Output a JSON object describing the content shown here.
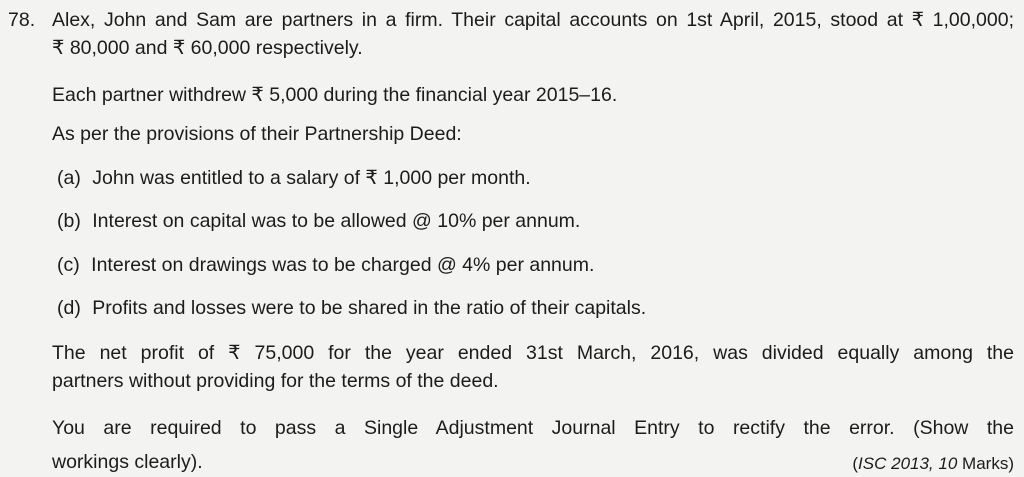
{
  "question": {
    "number": "78.",
    "intro_line1": "Alex, John and Sam are partners in a firm. Their capital accounts on 1st April, 2015, stood at ₹ 1,00,000;",
    "intro_line2": "₹ 80,000 and ₹ 60,000 respectively.",
    "drawings": "Each partner withdrew ₹ 5,000 during the financial year 2015–16.",
    "provisions_heading": "As per the provisions of their Partnership Deed:",
    "provisions": [
      {
        "label": "(a)",
        "text": "John was entitled to a salary of ₹ 1,000 per month."
      },
      {
        "label": "(b)",
        "text": "Interest on capital was to be allowed @ 10% per annum."
      },
      {
        "label": "(c)",
        "text": "Interest on drawings was to be charged @ 4% per annum."
      },
      {
        "label": "(d)",
        "text": "Profits and losses were to be shared in the ratio of their capitals."
      }
    ],
    "profit_line1": "The net profit of ₹ 75,000 for the year ended 31st March, 2016, was divided equally among the",
    "profit_line2": "partners without providing for the terms of the deed.",
    "requirement_line1": "You are required to pass a Single Adjustment Journal Entry to rectify the error. (Show the",
    "requirement_line2": "workings clearly).",
    "source_exam": "ISC 2013,",
    "source_num": "10",
    "source_marks": "Marks"
  }
}
